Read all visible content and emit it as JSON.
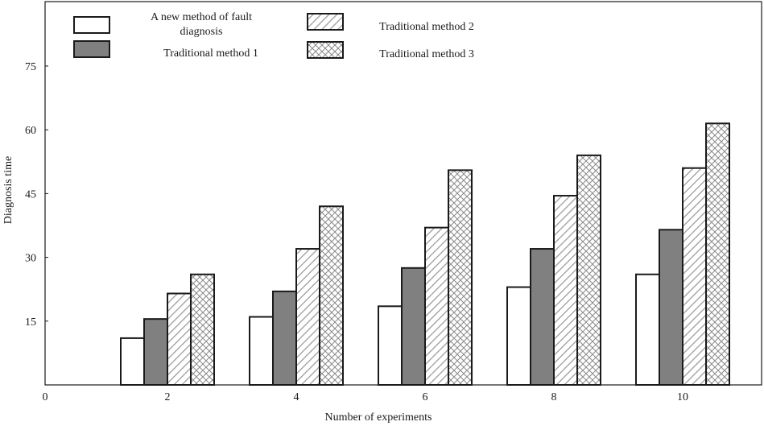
{
  "chart_data": {
    "type": "bar",
    "xlabel": "Number of experiments",
    "ylabel": "Diagnosis time",
    "x_origin_label": "0",
    "categories": [
      "2",
      "4",
      "6",
      "8",
      "10"
    ],
    "yticks": [
      15,
      30,
      45,
      60,
      75
    ],
    "ylim": [
      0,
      90
    ],
    "grid": false,
    "legend_position": "top-left",
    "series": [
      {
        "name": "A new method of fault diagnosis",
        "name_lines": [
          "A new method of fault",
          "diagnosis"
        ],
        "fill": "solid",
        "color": "#ffffff",
        "values": [
          11,
          16,
          18.5,
          23,
          26
        ]
      },
      {
        "name": "Traditional method 1",
        "name_lines": [
          "Traditional method 1"
        ],
        "fill": "solid",
        "color": "#808080",
        "values": [
          15.5,
          22,
          27.5,
          32,
          36.5
        ]
      },
      {
        "name": "Traditional method 2",
        "name_lines": [
          "Traditional method 2"
        ],
        "fill": "diagonal-hatch",
        "color": "#ffffff",
        "values": [
          21.5,
          32,
          37,
          44.5,
          51
        ]
      },
      {
        "name": "Traditional method 3",
        "name_lines": [
          "Traditional method 3"
        ],
        "fill": "cross-hatch",
        "color": "#ffffff",
        "values": [
          26,
          42,
          50.5,
          54,
          61.5
        ]
      }
    ]
  }
}
